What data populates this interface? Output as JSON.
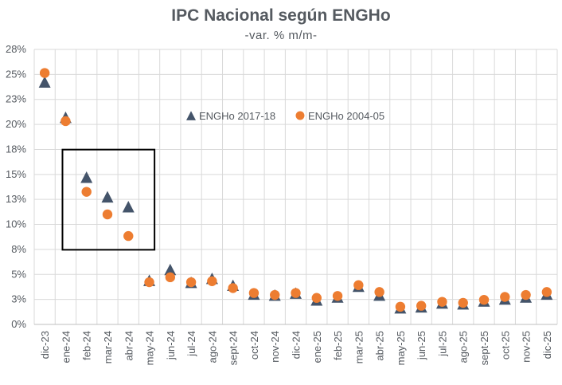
{
  "chart_data": {
    "type": "scatter",
    "title": "IPC Nacional según ENGHo",
    "subtitle": "-var. % m/m-",
    "xlabel": "",
    "ylabel": "",
    "ylim": [
      0,
      28
    ],
    "yticks": [
      "0%",
      "3%",
      "5%",
      "8%",
      "10%",
      "13%",
      "15%",
      "18%",
      "20%",
      "23%",
      "25%",
      "28%"
    ],
    "categories": [
      "dic-23",
      "ene-24",
      "feb-24",
      "mar-24",
      "abr-24",
      "may-24",
      "jun-24",
      "jul-24",
      "ago-24",
      "sept-24",
      "oct-24",
      "nov-24",
      "dic-24",
      "ene-25",
      "feb-25",
      "mar-25",
      "abr-25",
      "may-25",
      "jun-25",
      "jul-25",
      "ago-25",
      "sept-25",
      "oct-25",
      "nov-25",
      "dic-25"
    ],
    "series": [
      {
        "name": "ENGHo 2017-18",
        "marker": "triangle",
        "color": "#44546a",
        "values": [
          24.6,
          21.0,
          14.9,
          12.9,
          11.9,
          4.4,
          5.5,
          4.2,
          4.6,
          3.9,
          3.0,
          2.9,
          3.1,
          2.4,
          2.7,
          3.8,
          2.9,
          1.6,
          1.7,
          2.1,
          2.0,
          2.3,
          2.5,
          2.7,
          3.0
        ]
      },
      {
        "name": "ENGHo 2004-05",
        "marker": "circle",
        "color": "#ed7d31",
        "values": [
          25.6,
          20.7,
          13.5,
          11.2,
          9.0,
          4.3,
          4.8,
          4.3,
          4.4,
          3.7,
          3.2,
          3.0,
          3.2,
          2.7,
          2.9,
          4.0,
          3.3,
          1.8,
          1.9,
          2.3,
          2.2,
          2.5,
          2.8,
          3.0,
          3.3
        ]
      }
    ],
    "legend": "inside-top",
    "annotation": "box-highlight feb-24 to abr-24",
    "grid": true
  }
}
